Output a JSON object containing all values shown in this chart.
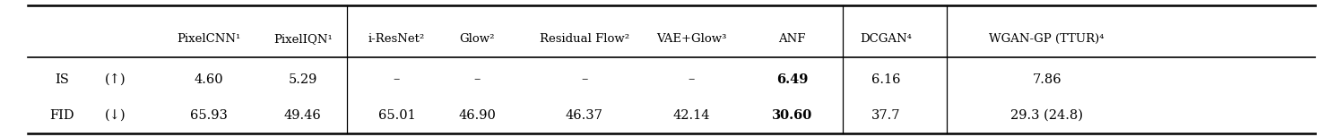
{
  "headers": [
    "",
    "",
    "PixelCNN¹",
    "PixelIQN¹",
    "i-ResNet²",
    "Glow²",
    "Residual Flow²",
    "VAE+Glow³",
    "ANF",
    "DCGAN⁴",
    "WGAN-GP (TTUR)⁴"
  ],
  "row1_label": "IS",
  "row1_arrow": "(↑)",
  "row1_values": [
    "4.60",
    "5.29",
    "–",
    "–",
    "–",
    "–",
    "6.49",
    "6.16",
    "7.86"
  ],
  "row2_label": "FID",
  "row2_arrow": "(↓)",
  "row2_values": [
    "65.93",
    "49.46",
    "65.01",
    "46.90",
    "46.37",
    "42.14",
    "30.60",
    "37.7",
    "29.3 (24.8)"
  ],
  "bold_row1": [
    6
  ],
  "bold_row2": [
    6
  ],
  "vline_after": [
    3,
    8,
    9
  ],
  "bg_color": "#ffffff",
  "text_color": "#000000",
  "figsize": [
    14.98,
    1.53
  ],
  "dpi": 100
}
